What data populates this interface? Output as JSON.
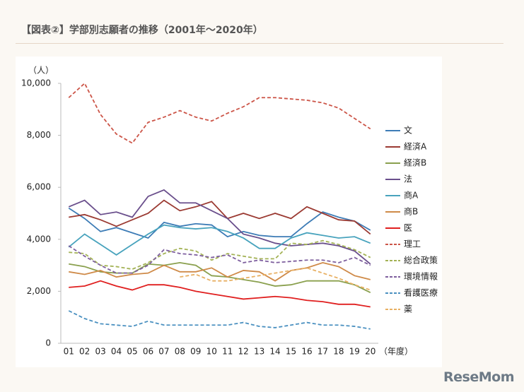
{
  "header": {
    "title": "【図表②】学部別志願者の推移（2001年～2020年）"
  },
  "logo": "ReseMom",
  "chart_data": {
    "type": "line",
    "y_label": "（人）",
    "x_label": "（年度）",
    "categories": [
      "01",
      "02",
      "03",
      "04",
      "05",
      "06",
      "07",
      "08",
      "09",
      "10",
      "11",
      "12",
      "13",
      "14",
      "15",
      "16",
      "17",
      "18",
      "19",
      "20"
    ],
    "ylim": [
      0,
      10000
    ],
    "yticks": [
      0,
      {
        "value": 2000,
        "label": "2,000"
      },
      {
        "value": 4000,
        "label": "4,000"
      },
      {
        "value": 6000,
        "label": "6,000"
      },
      {
        "value": 8000,
        "label": "8,000"
      },
      {
        "value": 10000,
        "label": "10,000"
      }
    ],
    "series": [
      {
        "name": "文",
        "color": "#3d7cb6",
        "dash": false,
        "values": [
          5200,
          4800,
          4300,
          4450,
          4250,
          4050,
          4650,
          4500,
          4600,
          4550,
          4100,
          4300,
          4150,
          4100,
          4100,
          4600,
          5050,
          4850,
          4700,
          4350
        ]
      },
      {
        "name": "経済A",
        "color": "#9b3a32",
        "dash": false,
        "values": [
          4850,
          4950,
          4750,
          4500,
          4750,
          5000,
          5500,
          5100,
          5250,
          5450,
          4800,
          5000,
          4800,
          5000,
          4800,
          5250,
          5000,
          4750,
          4700,
          4200
        ]
      },
      {
        "name": "経済B",
        "color": "#8aa04e",
        "dash": false,
        "values": [
          3050,
          2950,
          2750,
          2700,
          2700,
          3050,
          3000,
          3100,
          3000,
          2600,
          2550,
          2450,
          2350,
          2200,
          2250,
          2400,
          2400,
          2400,
          2250,
          1950
        ]
      },
      {
        "name": "法",
        "color": "#6a4f8c",
        "dash": false,
        "values": [
          5250,
          5500,
          4950,
          5050,
          4850,
          5650,
          5900,
          5400,
          5400,
          5100,
          4800,
          4200,
          4050,
          3850,
          3750,
          3800,
          3850,
          3750,
          3550,
          3050
        ]
      },
      {
        "name": "商A",
        "color": "#48a3bd",
        "dash": false,
        "values": [
          3700,
          4200,
          3800,
          3400,
          3800,
          4200,
          4550,
          4450,
          4400,
          4450,
          4300,
          4050,
          3650,
          3650,
          4050,
          4250,
          4150,
          4050,
          4100,
          3850
        ]
      },
      {
        "name": "商B",
        "color": "#cf8a48",
        "dash": false,
        "values": [
          2750,
          2650,
          2800,
          2550,
          2650,
          2700,
          3000,
          2750,
          2750,
          2900,
          2550,
          2800,
          2750,
          2400,
          2800,
          2900,
          3100,
          2950,
          2600,
          2450
        ]
      },
      {
        "name": "医",
        "color": "#e01f1f",
        "dash": false,
        "values": [
          2150,
          2200,
          2400,
          2200,
          2050,
          2250,
          2250,
          2150,
          2000,
          1900,
          1800,
          1700,
          1750,
          1800,
          1750,
          1650,
          1600,
          1500,
          1500,
          1400
        ]
      },
      {
        "name": "理工",
        "color": "#cc5548",
        "dash": true,
        "values": [
          9450,
          10000,
          8800,
          8050,
          7700,
          8500,
          8700,
          8950,
          8700,
          8550,
          8850,
          9100,
          9450,
          9450,
          9400,
          9350,
          9250,
          9050,
          8650,
          8250
        ]
      },
      {
        "name": "総合政策",
        "color": "#a3b255",
        "dash": true,
        "values": [
          3500,
          3450,
          3000,
          2950,
          2850,
          3100,
          3450,
          3650,
          3550,
          3200,
          3450,
          3350,
          3250,
          3250,
          3850,
          3800,
          3950,
          3800,
          3600,
          3300
        ]
      },
      {
        "name": "環境情報",
        "color": "#7e5f9e",
        "dash": true,
        "values": [
          3750,
          3350,
          3000,
          2700,
          2700,
          3000,
          3600,
          3450,
          3400,
          3300,
          3400,
          3100,
          3200,
          3100,
          3150,
          3200,
          3200,
          3100,
          3300,
          3000
        ]
      },
      {
        "name": "看護医療",
        "color": "#4a90c0",
        "dash": true,
        "values": [
          1250,
          950,
          750,
          700,
          650,
          850,
          700,
          700,
          700,
          700,
          700,
          800,
          650,
          600,
          700,
          800,
          700,
          700,
          650,
          550
        ]
      },
      {
        "name": "薬",
        "color": "#e8b063",
        "dash": true,
        "values": [
          null,
          null,
          null,
          null,
          null,
          null,
          null,
          2550,
          2650,
          2400,
          2400,
          2500,
          2600,
          2700,
          2800,
          2900,
          2700,
          2500,
          2250,
          2050
        ]
      }
    ]
  }
}
